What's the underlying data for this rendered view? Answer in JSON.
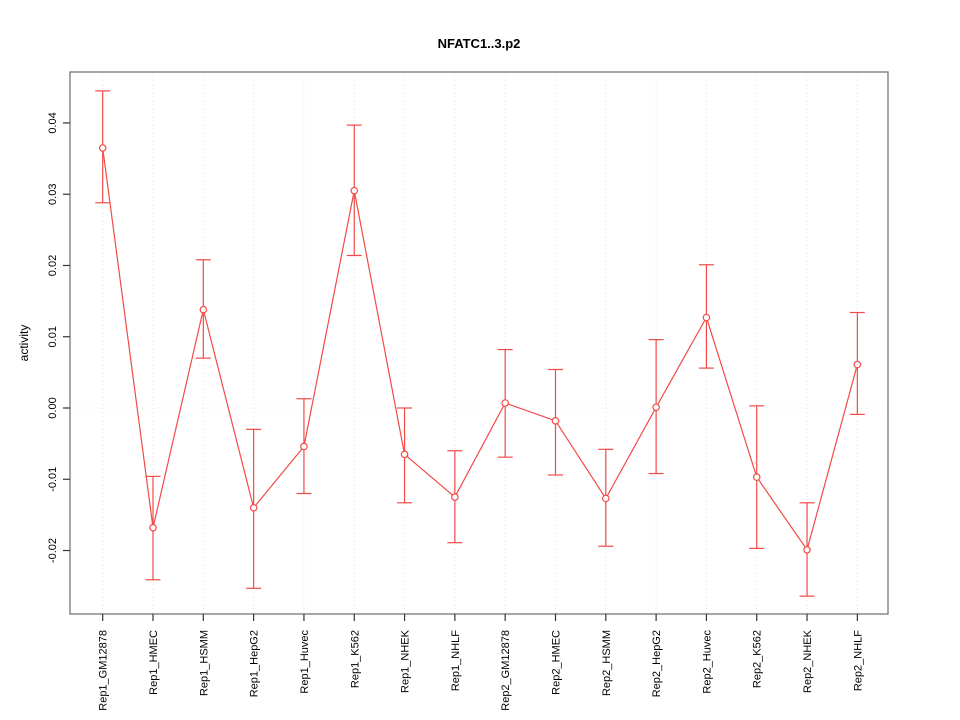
{
  "chart_data": {
    "type": "line",
    "title": "NFATC1..3.p2",
    "xlabel": "",
    "ylabel": "activity",
    "categories": [
      "Rep1_GM12878",
      "Rep1_HMEC",
      "Rep1_HSMM",
      "Rep1_HepG2",
      "Rep1_Huvec",
      "Rep1_K562",
      "Rep1_NHEK",
      "Rep1_NHLF",
      "Rep2_GM12878",
      "Rep2_HMEC",
      "Rep2_HSMM",
      "Rep2_HepG2",
      "Rep2_Huvec",
      "Rep2_K562",
      "Rep2_NHEK",
      "Rep2_NHLF"
    ],
    "series": [
      {
        "name": "activity",
        "values": [
          0.0365,
          -0.0168,
          0.0138,
          -0.014,
          -0.0054,
          0.0305,
          -0.0065,
          -0.0125,
          0.0007,
          -0.0018,
          -0.0127,
          0.0001,
          0.0127,
          -0.0097,
          -0.0199,
          0.0061
        ],
        "error_high": [
          0.0445,
          -0.0096,
          0.0208,
          -0.003,
          0.0013,
          0.0397,
          0.0,
          -0.006,
          0.0082,
          0.0054,
          -0.0058,
          0.0096,
          0.0201,
          0.0003,
          -0.0133,
          0.0134
        ],
        "error_low": [
          0.0288,
          -0.0241,
          0.007,
          -0.0253,
          -0.012,
          0.0214,
          -0.0133,
          -0.0189,
          -0.0069,
          -0.0094,
          -0.0194,
          -0.0092,
          0.0056,
          -0.0197,
          -0.0264,
          -0.0009
        ]
      }
    ],
    "ytick_labels": [
      "0.04",
      "0.03",
      "0.02",
      "0.01",
      "0.00",
      "-0.01",
      "-0.02"
    ],
    "ytick_values": [
      0.04,
      0.03,
      0.02,
      0.01,
      0.0,
      -0.01,
      -0.02
    ],
    "ylim": [
      -0.029,
      0.047
    ],
    "grid": "dotted vertical line at each category; dotted horizontal line at 0",
    "legend_position": "none",
    "marker": "open-circle",
    "colors": {
      "series": "#f24a46",
      "gridline": "#e2e2e2",
      "zero_line": "#e8e0e0",
      "axis_box": "#777777",
      "tick": "#333333",
      "text": "#000000",
      "background": "#ffffff"
    }
  }
}
